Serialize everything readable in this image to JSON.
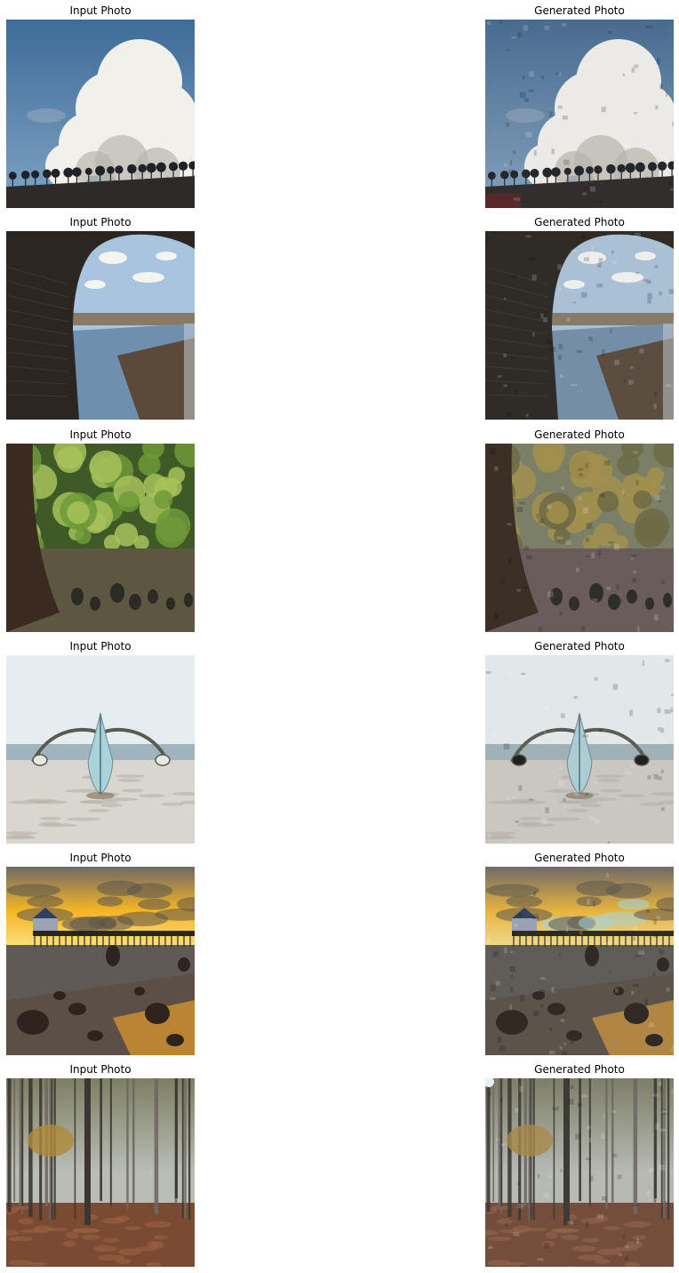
{
  "figure": {
    "rows": [
      {
        "input_title": "Input Photo",
        "generated_title": "Generated Photo",
        "scene": "cloud",
        "colors": {
          "sky_top": "#3f6b99",
          "sky_bottom": "#7fa4c4",
          "cloud": "#f2f0ea",
          "cloud_shadow": "#b9b6ad",
          "ground": "#2e2a28",
          "trees": "#1f2228"
        }
      },
      {
        "input_title": "Input Photo",
        "generated_title": "Generated Photo",
        "scene": "bridge",
        "colors": {
          "arch": "#2b2622",
          "arch_light": "#4a413a",
          "sky": "#a9c4de",
          "cloud": "#f4f4f1",
          "water": "#6f8fae",
          "bank": "#5b4a3a",
          "field": "#8a7a63"
        }
      },
      {
        "input_title": "Input Photo",
        "generated_title": "Generated Photo",
        "scene": "forest",
        "colors": {
          "leaves": "#6f9a3a",
          "leaves_light": "#a7c25a",
          "leaves_dark": "#3f5a26",
          "trunk": "#3a2a1f",
          "ground": "#5d5640",
          "stones": "#2b2a24",
          "gen_leaves": "#a8903e"
        }
      },
      {
        "input_title": "Input Photo",
        "generated_title": "Generated Photo",
        "scene": "boat",
        "colors": {
          "sky": "#e6edf0",
          "sea": "#9fb4bd",
          "sand": "#d9d6cf",
          "sand_dark": "#b7b1a6",
          "hull": "#a9d2da",
          "outrigger": "#5a5a52"
        }
      },
      {
        "input_title": "Input Photo",
        "generated_title": "Generated Photo",
        "scene": "pier",
        "colors": {
          "sky_top": "#6e6a66",
          "glow": "#f5b524",
          "glow_light": "#fbe07a",
          "sea": "#5f5a55",
          "pier": "#2a2523",
          "rocks": "#2e241d",
          "reflection": "#e49a2a"
        }
      },
      {
        "input_title": "Input Photo",
        "generated_title": "Generated Photo",
        "scene": "woods",
        "colors": {
          "mist": "#b9bdb5",
          "trunk": "#3b3631",
          "trunk_light": "#6e6860",
          "canopy": "#7d7f63",
          "autumn": "#b08a3a",
          "floor": "#7a4a32",
          "floor_light": "#9b6243"
        }
      }
    ]
  }
}
